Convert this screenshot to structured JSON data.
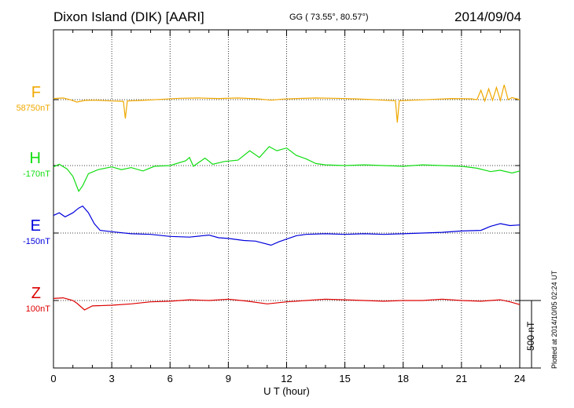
{
  "header": {
    "title": "Dixon Island (DIK)  [AARI]",
    "coordinates": "GG ( 73.55°,  80.57°)",
    "date": "2014/09/04"
  },
  "footer": {
    "plotted_note": "Plotted at 2014/10/05 02:24 UT",
    "scale_label": "500 nT"
  },
  "colors": {
    "F": "#f0a800",
    "H": "#11dd11",
    "E": "#0000dd",
    "Z": "#dd0000"
  },
  "chart_data": {
    "type": "line",
    "title": "Dixon Island (DIK)  [AARI]",
    "xlabel": "U T (hour)",
    "ylabel": "",
    "xlim": [
      0,
      24
    ],
    "x_ticks": [
      "0",
      "3",
      "6",
      "9",
      "12",
      "15",
      "18",
      "21",
      "24"
    ],
    "grid": true,
    "scale_bar_nT": 500,
    "series": [
      {
        "name": "F",
        "baseline_label": "58750nT",
        "color": "#f0a800",
        "points": [
          [
            0,
            8
          ],
          [
            0.5,
            12
          ],
          [
            0.9,
            -2
          ],
          [
            1.2,
            -18
          ],
          [
            1.6,
            -6
          ],
          [
            2.2,
            -4
          ],
          [
            3,
            -10
          ],
          [
            3.6,
            -12
          ],
          [
            3.7,
            -140
          ],
          [
            3.8,
            -10
          ],
          [
            4.5,
            -6
          ],
          [
            5.5,
            2
          ],
          [
            6.5,
            10
          ],
          [
            7.5,
            12
          ],
          [
            8.5,
            8
          ],
          [
            9.5,
            12
          ],
          [
            10.5,
            6
          ],
          [
            11.2,
            -4
          ],
          [
            11.8,
            4
          ],
          [
            12.5,
            8
          ],
          [
            13.5,
            12
          ],
          [
            14.5,
            10
          ],
          [
            15.5,
            6
          ],
          [
            16.5,
            0
          ],
          [
            17,
            -4
          ],
          [
            17.6,
            -8
          ],
          [
            17.7,
            -170
          ],
          [
            17.8,
            -8
          ],
          [
            18.5,
            -4
          ],
          [
            19.5,
            2
          ],
          [
            20.5,
            8
          ],
          [
            21.5,
            6
          ],
          [
            21.8,
            0
          ],
          [
            22,
            70
          ],
          [
            22.2,
            -10
          ],
          [
            22.4,
            80
          ],
          [
            22.6,
            -5
          ],
          [
            22.8,
            90
          ],
          [
            23,
            -6
          ],
          [
            23.2,
            110
          ],
          [
            23.4,
            0
          ],
          [
            23.6,
            15
          ],
          [
            24,
            0
          ]
        ]
      },
      {
        "name": "H",
        "baseline_label": "-170nT",
        "color": "#11dd11",
        "points": [
          [
            0,
            -10
          ],
          [
            0.3,
            10
          ],
          [
            0.7,
            -25
          ],
          [
            1,
            -80
          ],
          [
            1.3,
            -190
          ],
          [
            1.5,
            -150
          ],
          [
            1.8,
            -60
          ],
          [
            2.3,
            -30
          ],
          [
            3,
            -10
          ],
          [
            3.5,
            -30
          ],
          [
            4,
            -15
          ],
          [
            4.6,
            -40
          ],
          [
            5.2,
            -5
          ],
          [
            6,
            0
          ],
          [
            6.8,
            35
          ],
          [
            7,
            60
          ],
          [
            7.2,
            -5
          ],
          [
            7.8,
            55
          ],
          [
            8.2,
            10
          ],
          [
            8.8,
            30
          ],
          [
            9.5,
            40
          ],
          [
            10.1,
            110
          ],
          [
            10.6,
            60
          ],
          [
            11.1,
            140
          ],
          [
            11.5,
            110
          ],
          [
            12,
            130
          ],
          [
            12.5,
            75
          ],
          [
            13,
            50
          ],
          [
            13.5,
            15
          ],
          [
            14,
            5
          ],
          [
            15,
            0
          ],
          [
            16,
            5
          ],
          [
            17,
            0
          ],
          [
            18,
            -5
          ],
          [
            19,
            5
          ],
          [
            20,
            0
          ],
          [
            21,
            -5
          ],
          [
            21.8,
            -20
          ],
          [
            22.5,
            -45
          ],
          [
            23,
            -35
          ],
          [
            23.6,
            -55
          ],
          [
            24,
            -40
          ]
        ]
      },
      {
        "name": "E",
        "baseline_label": "-150nT",
        "color": "#0000dd",
        "points": [
          [
            0,
            130
          ],
          [
            0.3,
            150
          ],
          [
            0.6,
            120
          ],
          [
            1,
            150
          ],
          [
            1.3,
            185
          ],
          [
            1.5,
            200
          ],
          [
            1.8,
            150
          ],
          [
            2.1,
            70
          ],
          [
            2.4,
            20
          ],
          [
            3,
            10
          ],
          [
            4,
            -5
          ],
          [
            5,
            -10
          ],
          [
            6,
            -25
          ],
          [
            7,
            -30
          ],
          [
            8,
            -15
          ],
          [
            8.5,
            -35
          ],
          [
            9,
            -40
          ],
          [
            9.8,
            -55
          ],
          [
            10.4,
            -60
          ],
          [
            11.2,
            -90
          ],
          [
            11.6,
            -65
          ],
          [
            12,
            -45
          ],
          [
            12.5,
            -20
          ],
          [
            13,
            -10
          ],
          [
            14,
            -5
          ],
          [
            15,
            -10
          ],
          [
            16,
            -5
          ],
          [
            17,
            -10
          ],
          [
            18,
            -5
          ],
          [
            19,
            0
          ],
          [
            20,
            5
          ],
          [
            21,
            15
          ],
          [
            22,
            20
          ],
          [
            22.5,
            50
          ],
          [
            23,
            70
          ],
          [
            23.5,
            55
          ],
          [
            24,
            60
          ]
        ]
      },
      {
        "name": "Z",
        "baseline_label": "100nT",
        "color": "#dd0000",
        "points": [
          [
            0,
            15
          ],
          [
            0.5,
            20
          ],
          [
            1,
            0
          ],
          [
            1.2,
            -20
          ],
          [
            1.6,
            -70
          ],
          [
            2,
            -40
          ],
          [
            3,
            -35
          ],
          [
            4,
            -25
          ],
          [
            5,
            -10
          ],
          [
            6,
            -5
          ],
          [
            7,
            5
          ],
          [
            8,
            0
          ],
          [
            9,
            10
          ],
          [
            10,
            -5
          ],
          [
            11,
            -25
          ],
          [
            12,
            -10
          ],
          [
            13,
            0
          ],
          [
            14,
            10
          ],
          [
            15,
            5
          ],
          [
            16,
            0
          ],
          [
            17,
            -5
          ],
          [
            18,
            0
          ],
          [
            19,
            0
          ],
          [
            20,
            10
          ],
          [
            21,
            0
          ],
          [
            22,
            -5
          ],
          [
            23,
            5
          ],
          [
            23.5,
            -10
          ],
          [
            24,
            -30
          ]
        ]
      }
    ]
  }
}
